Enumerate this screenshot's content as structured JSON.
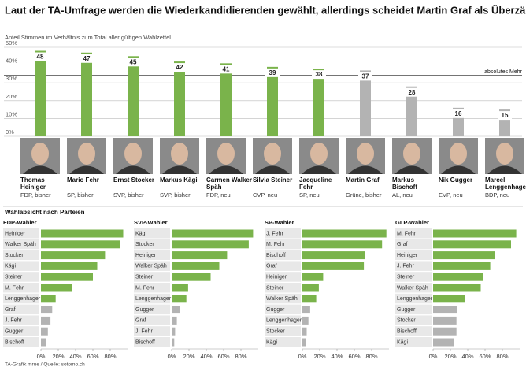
{
  "title": "Laut der TA-Umfrage werden die Wiederkandidierenden gewählt, allerdings scheidet Martin Graf als Überzähliger aus",
  "section_title": "Wahlabsicht nach Parteien",
  "source": "TA-Grafik mrue / Quelle: sotomo.ch",
  "chart_data": [
    {
      "type": "bar",
      "subtitle": "Anteil Stimmen im Verhältnis zum Total aller gültigen Wahlzettel",
      "categories": [
        "Thomas Heiniger",
        "Mario Fehr",
        "Ernst Stocker",
        "Markus Kägi",
        "Carmen Walker Späh",
        "Silvia Steiner",
        "Jacqueline Fehr",
        "Martin Graf",
        "Markus Bischoff",
        "Nik Gugger",
        "Marcel Lenggenhager"
      ],
      "parties": [
        "FDP, bisher",
        "SP, bisher",
        "SVP, bisher",
        "SVP, bisher",
        "FDP, neu",
        "CVP, neu",
        "SP, neu",
        "Grüne, bisher",
        "AL, neu",
        "EVP, neu",
        "BDP, neu"
      ],
      "values": [
        48,
        47,
        45,
        42,
        41,
        39,
        38,
        37,
        28,
        16,
        15
      ],
      "colors": [
        "#7ab34b",
        "#7ab34b",
        "#7ab34b",
        "#7ab34b",
        "#7ab34b",
        "#7ab34b",
        "#7ab34b",
        "#b3b3b3",
        "#b3b3b3",
        "#b3b3b3",
        "#b3b3b3"
      ],
      "ylim": [
        0,
        50
      ],
      "yticks": [
        {
          "value": 0,
          "label": "0%"
        },
        {
          "value": 10,
          "label": "10%"
        },
        {
          "value": 20,
          "label": "20%"
        },
        {
          "value": 30,
          "label": "30%"
        },
        {
          "value": 40,
          "label": "40%"
        },
        {
          "value": 50,
          "label": "50%"
        }
      ],
      "majority_line": {
        "value": 34,
        "label": "absolutes Mehr"
      },
      "grid": true
    },
    {
      "type": "hbar",
      "title": "FDP-Wähler",
      "categories": [
        "Heiniger",
        "Walker Späh",
        "Stocker",
        "Kägi",
        "Steiner",
        "M. Fehr",
        "Lenggenhager",
        "Graf",
        "J. Fehr",
        "Gugger",
        "Bischoff"
      ],
      "values": [
        95,
        91,
        74,
        65,
        60,
        36,
        17,
        13,
        11,
        8,
        6
      ],
      "colors": [
        "#7ab34b",
        "#7ab34b",
        "#7ab34b",
        "#7ab34b",
        "#7ab34b",
        "#7ab34b",
        "#7ab34b",
        "#b3b3b3",
        "#b3b3b3",
        "#b3b3b3",
        "#b3b3b3"
      ],
      "xlim": [
        0,
        100
      ],
      "xticks": [
        {
          "value": 0,
          "label": "0%"
        },
        {
          "value": 20,
          "label": "20%"
        },
        {
          "value": 40,
          "label": "40%"
        },
        {
          "value": 60,
          "label": "60%"
        },
        {
          "value": 80,
          "label": "80%"
        }
      ]
    },
    {
      "type": "hbar",
      "title": "SVP-Wähler",
      "categories": [
        "Kägi",
        "Stocker",
        "Heiniger",
        "Walker Späh",
        "Steiner",
        "M. Fehr",
        "Lenggenhager",
        "Gugger",
        "Graf",
        "J. Fehr",
        "Bischoff"
      ],
      "values": [
        94,
        89,
        64,
        55,
        45,
        19,
        17,
        10,
        6,
        4,
        3
      ],
      "colors": [
        "#7ab34b",
        "#7ab34b",
        "#7ab34b",
        "#7ab34b",
        "#7ab34b",
        "#7ab34b",
        "#7ab34b",
        "#b3b3b3",
        "#b3b3b3",
        "#b3b3b3",
        "#b3b3b3"
      ],
      "xlim": [
        0,
        100
      ],
      "xticks": [
        {
          "value": 0,
          "label": "0%"
        },
        {
          "value": 20,
          "label": "20%"
        },
        {
          "value": 40,
          "label": "40%"
        },
        {
          "value": 60,
          "label": "60%"
        },
        {
          "value": 80,
          "label": "80%"
        }
      ]
    },
    {
      "type": "hbar",
      "title": "SP-Wähler",
      "categories": [
        "J. Fehr",
        "M. Fehr",
        "Bischoff",
        "Graf",
        "Heiniger",
        "Steiner",
        "Walker Späh",
        "Gugger",
        "Lenggenhager",
        "Stocker",
        "Kägi"
      ],
      "values": [
        97,
        92,
        72,
        71,
        24,
        19,
        16,
        9,
        7,
        5,
        4
      ],
      "colors": [
        "#7ab34b",
        "#7ab34b",
        "#7ab34b",
        "#7ab34b",
        "#7ab34b",
        "#7ab34b",
        "#7ab34b",
        "#b3b3b3",
        "#b3b3b3",
        "#b3b3b3",
        "#b3b3b3"
      ],
      "xlim": [
        0,
        100
      ],
      "xticks": [
        {
          "value": 0,
          "label": "0%"
        },
        {
          "value": 20,
          "label": "20%"
        },
        {
          "value": 40,
          "label": "40%"
        },
        {
          "value": 60,
          "label": "60%"
        },
        {
          "value": 80,
          "label": "80%"
        }
      ]
    },
    {
      "type": "hbar",
      "title": "GLP-Wähler",
      "categories": [
        "M. Fehr",
        "Graf",
        "Heiniger",
        "J. Fehr",
        "Steiner",
        "Walker Späh",
        "Lenggenhager",
        "Gugger",
        "Stocker",
        "Bischoff",
        "Kägi"
      ],
      "values": [
        96,
        90,
        71,
        66,
        58,
        55,
        37,
        28,
        27,
        27,
        24
      ],
      "colors": [
        "#7ab34b",
        "#7ab34b",
        "#7ab34b",
        "#7ab34b",
        "#7ab34b",
        "#7ab34b",
        "#7ab34b",
        "#b3b3b3",
        "#b3b3b3",
        "#b3b3b3",
        "#b3b3b3"
      ],
      "xlim": [
        0,
        100
      ],
      "xticks": [
        {
          "value": 0,
          "label": "0%"
        },
        {
          "value": 20,
          "label": "20%"
        },
        {
          "value": 40,
          "label": "40%"
        },
        {
          "value": 60,
          "label": "60%"
        },
        {
          "value": 80,
          "label": "80%"
        }
      ]
    }
  ]
}
